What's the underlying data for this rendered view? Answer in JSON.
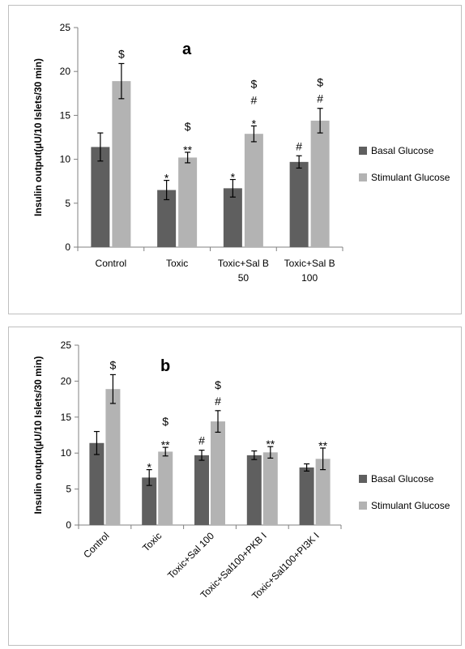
{
  "chart_data": [
    {
      "type": "bar",
      "panel_label": "a",
      "ylabel": "Insulin output(µU/10 Islets/30 min)",
      "ylim": [
        0,
        25
      ],
      "yticks": [
        0,
        5,
        10,
        15,
        20,
        25
      ],
      "categories": [
        [
          "Control"
        ],
        [
          "Toxic"
        ],
        [
          "Toxic+Sal B",
          "50"
        ],
        [
          "Toxic+Sal B",
          "100"
        ]
      ],
      "series": [
        {
          "name": "Basal Glucose",
          "color": "#5f5f5f",
          "values": [
            11.4,
            6.5,
            6.7,
            9.7
          ],
          "errors": [
            1.6,
            1.1,
            1.0,
            0.7
          ],
          "annotations": [
            [],
            [
              "*"
            ],
            [
              "*"
            ],
            [
              "#"
            ]
          ]
        },
        {
          "name": "Stimulant Glucose",
          "color": "#b3b3b3",
          "values": [
            18.9,
            10.2,
            12.9,
            14.4
          ],
          "errors": [
            2.0,
            0.6,
            0.9,
            1.4
          ],
          "annotations": [
            [
              "$"
            ],
            [
              "**",
              "$"
            ],
            [
              "*",
              "#",
              "$"
            ],
            [
              "#",
              "$"
            ]
          ]
        }
      ],
      "legend_position": "right",
      "grid": false
    },
    {
      "type": "bar",
      "panel_label": "b",
      "ylabel": "Insulin output(µU/10 Islets/30 min)",
      "ylim": [
        0,
        25
      ],
      "yticks": [
        0,
        5,
        10,
        15,
        20,
        25
      ],
      "categories": [
        [
          "Control"
        ],
        [
          "Toxic"
        ],
        [
          "Toxic+Sal 100"
        ],
        [
          "Toxic+Sal100+PKB I"
        ],
        [
          "Toxic+Sal100+PI3K I"
        ]
      ],
      "category_label_rotation": -45,
      "series": [
        {
          "name": "Basal Glucose",
          "color": "#5f5f5f",
          "values": [
            11.4,
            6.6,
            9.7,
            9.7,
            8.0
          ],
          "errors": [
            1.6,
            1.1,
            0.7,
            0.6,
            0.5
          ],
          "annotations": [
            [],
            [
              "*"
            ],
            [
              "#"
            ],
            [],
            []
          ]
        },
        {
          "name": "Stimulant Glucose",
          "color": "#b3b3b3",
          "values": [
            18.9,
            10.2,
            14.4,
            10.1,
            9.2
          ],
          "errors": [
            2.0,
            0.6,
            1.5,
            0.8,
            1.5
          ],
          "annotations": [
            [
              "$"
            ],
            [
              "**",
              "$"
            ],
            [
              "#",
              "$"
            ],
            [
              "**"
            ],
            [
              "**"
            ]
          ]
        }
      ],
      "legend_position": "right",
      "grid": false
    }
  ]
}
